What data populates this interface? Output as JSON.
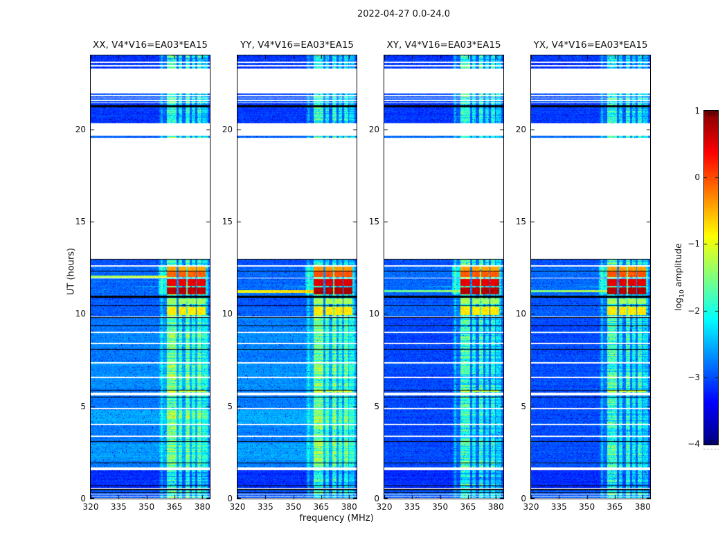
{
  "title": "2022-04-27 0.0-24.0",
  "axes": {
    "xlabel": "frequency (MHz)",
    "ylabel": "UT (hours)"
  },
  "colorbar": {
    "label_prefix": "log",
    "label_sub": "10",
    "label_suffix": " amplitude",
    "tick_labels": [
      "1",
      "0",
      "−1",
      "−2",
      "−3",
      "−4"
    ],
    "tick_values": [
      1,
      0,
      -1,
      -2,
      -3,
      -4
    ],
    "vmin": -4,
    "vmax": 1,
    "colormap": "jet"
  },
  "chart_data": {
    "type": "heatmap",
    "description": "Four dynamic-spectrum (waterfall) panels of interferometric visibility amplitude vs frequency and time for baseline V4*V16=EA03*EA15, polarizations XX, YY, XY, YX; color is log10 amplitude from -4 to 1 (jet colormap).",
    "x_axis": {
      "label": "frequency (MHz)",
      "min": 320,
      "max": 384,
      "ticks": [
        320,
        335,
        350,
        365,
        380
      ]
    },
    "y_axis": {
      "label": "UT (hours)",
      "min": 0,
      "max": 24,
      "ticks": [
        0,
        5,
        10,
        15,
        20
      ]
    },
    "value_axis": {
      "label": "log10 amplitude",
      "min": -4,
      "max": 1
    },
    "panels": [
      {
        "id": "xx",
        "title": "XX, V4*V16=EA03*EA15",
        "low_level": -2.78,
        "light_mods": true,
        "block_adj": 0.0,
        "streak": {
          "t0": 11.96,
          "t1": 12.08,
          "v": -1.35
        }
      },
      {
        "id": "yy",
        "title": "YY, V4*V16=EA03*EA15",
        "low_level": -2.75,
        "light_mods": true,
        "block_adj": 0.08,
        "streak": {
          "t0": 11.14,
          "t1": 11.3,
          "v": -0.95
        }
      },
      {
        "id": "xy",
        "title": "XY, V4*V16=EA03*EA15",
        "low_level": -3.02,
        "light_mods": false,
        "block_adj": 0.03,
        "streak": {
          "t0": 11.16,
          "t1": 11.3,
          "v": -1.65
        }
      },
      {
        "id": "yx",
        "title": "YX, V4*V16=EA03*EA15",
        "low_level": -3.0,
        "light_mods": false,
        "block_adj": 0.05,
        "streak": {
          "t0": 11.16,
          "t1": 11.3,
          "v": -1.5
        }
      }
    ],
    "time_segments": [
      {
        "t0": 23.3,
        "t1": 24.0,
        "v": -3.1
      },
      {
        "t0": 21.86,
        "t1": 21.94,
        "v": -3.0
      },
      {
        "t0": 21.73,
        "t1": 21.8,
        "v": -3.0
      },
      {
        "t0": 21.6,
        "t1": 21.67,
        "v": -3.0
      },
      {
        "t0": 21.46,
        "t1": 21.54,
        "v": -3.0
      },
      {
        "t0": 21.28,
        "t1": 21.42,
        "v": -3.1
      },
      {
        "t0": 20.32,
        "t1": 21.19,
        "v": -3.1
      },
      {
        "t0": 19.52,
        "t1": 19.64,
        "v": -2.85
      },
      {
        "t0": 12.62,
        "t1": 12.97,
        "v": -3.0
      },
      {
        "t0": 10.98,
        "t1": 12.58,
        "v": -2.85
      },
      {
        "t0": 10.48,
        "t1": 10.88,
        "v": -2.95
      },
      {
        "t0": 9.85,
        "t1": 10.45,
        "v": -2.9
      },
      {
        "t0": 1.96,
        "t1": 9.78,
        "v": "low"
      },
      {
        "t0": 1.7,
        "t1": 1.92,
        "v": "low"
      },
      {
        "t0": 0.56,
        "t1": 1.54,
        "v": -3.15
      },
      {
        "t0": 0.05,
        "t1": 0.52,
        "v": -2.95
      }
    ],
    "light_mods": [
      {
        "t0": 2.05,
        "t1": 3.0,
        "d": 0.18
      },
      {
        "t0": 4.05,
        "t1": 4.8,
        "d": 0.22
      },
      {
        "t0": 5.95,
        "t1": 7.3,
        "d": 0.1
      },
      {
        "t0": 8.15,
        "t1": 8.95,
        "d": 0.06
      }
    ],
    "rfi_stripes": [
      {
        "f0": 357.0,
        "f1": 383.5,
        "b": 0.18
      },
      {
        "f0": 357.4,
        "f1": 358.6,
        "b": 0.35
      },
      {
        "f0": 360.8,
        "f1": 366.2,
        "b": 0.95
      },
      {
        "f0": 367.3,
        "f1": 369.2,
        "b": 0.7
      },
      {
        "f0": 370.9,
        "f1": 373.2,
        "b": 0.9
      },
      {
        "f0": 374.3,
        "f1": 376.2,
        "b": 0.65
      },
      {
        "f0": 377.3,
        "f1": 379.4,
        "b": 0.8
      },
      {
        "f0": 380.0,
        "f1": 382.8,
        "b": 0.5
      }
    ],
    "block_columns": [
      [
        360.9,
        366.3
      ],
      [
        367.1,
        371.4
      ],
      [
        372.0,
        376.4
      ],
      [
        377.0,
        381.6
      ]
    ],
    "block_rows": [
      {
        "t0": 12.35,
        "t1": 12.55,
        "v": -0.45
      },
      {
        "t0": 12.0,
        "t1": 12.3,
        "v": -0.1
      },
      {
        "t0": 11.5,
        "t1": 11.9,
        "v": 0.45
      },
      {
        "t0": 11.05,
        "t1": 11.45,
        "v": 0.7
      }
    ],
    "warm_rows": [
      {
        "t0": 10.55,
        "t1": 10.85,
        "v": -1.35
      },
      {
        "t0": 9.92,
        "t1": 10.4,
        "v": -0.8
      },
      {
        "t0": 5.76,
        "t1": 5.84,
        "v": -1.1
      }
    ],
    "cyan_wedge": {
      "t0": 11.3,
      "t1": 11.78,
      "f0": 340,
      "f1": 361,
      "boost": 0.5
    },
    "pre_band": {
      "f0": 356.5,
      "f1": 360.8,
      "boost": 0.55
    },
    "white_lines": [
      {
        "t": 23.62,
        "w": 0.06
      },
      {
        "t": 23.45,
        "w": 0.06
      },
      {
        "t": 12.6,
        "w": 0.07
      },
      {
        "t": 11.94,
        "w": 0.05
      },
      {
        "t": 9.0,
        "w": 0.07
      },
      {
        "t": 8.4,
        "w": 0.07
      },
      {
        "t": 7.35,
        "w": 0.07
      },
      {
        "t": 6.55,
        "w": 0.07
      },
      {
        "t": 5.68,
        "w": 0.14
      },
      {
        "t": 4.86,
        "w": 0.07
      },
      {
        "t": 4.02,
        "w": 0.07
      },
      {
        "t": 3.36,
        "w": 0.07
      },
      {
        "t": 1.62,
        "w": 0.15
      },
      {
        "t": 0.24,
        "w": 0.045
      },
      {
        "t": 0.13,
        "w": 0.045
      }
    ],
    "black_lines": [
      {
        "t": 21.24,
        "w": 0.1
      },
      {
        "t": 12.96,
        "w": 0.05
      },
      {
        "t": 12.33,
        "w": 0.035
      },
      {
        "t": 10.93,
        "w": 0.13
      },
      {
        "t": 10.46,
        "w": 0.045
      },
      {
        "t": 9.8,
        "w": 0.05
      },
      {
        "t": 9.36,
        "w": 0.04
      },
      {
        "t": 8.08,
        "w": 0.04
      },
      {
        "t": 5.88,
        "w": 0.04
      },
      {
        "t": 5.48,
        "w": 0.04
      },
      {
        "t": 3.08,
        "w": 0.04
      },
      {
        "t": 1.93,
        "w": 0.04
      },
      {
        "t": 0.7,
        "w": 0.04
      },
      {
        "t": 0.48,
        "w": 0.09
      },
      {
        "t": 0.33,
        "w": 0.03
      }
    ]
  }
}
